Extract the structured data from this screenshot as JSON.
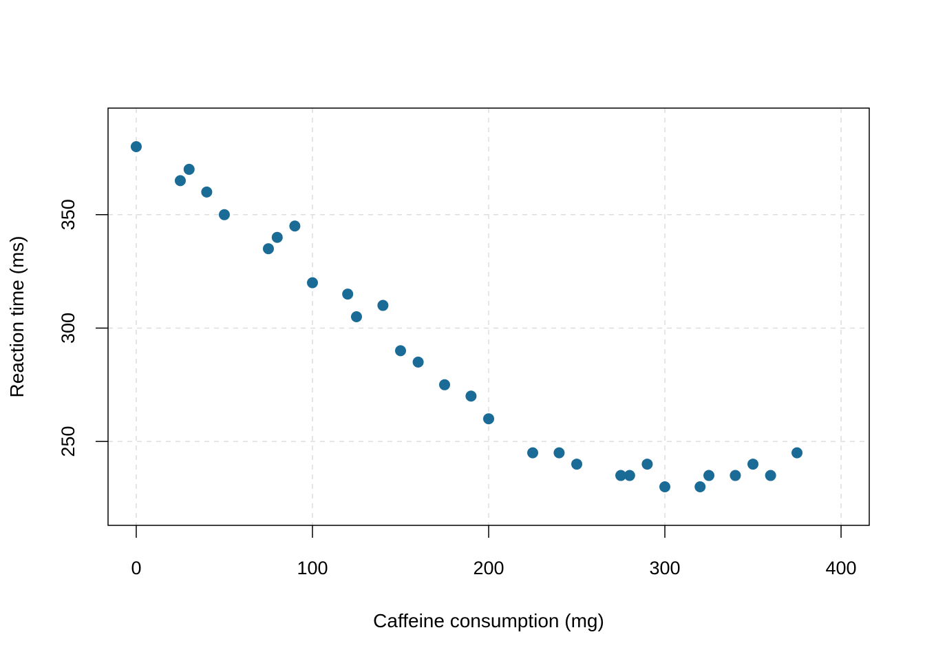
{
  "chart_data": {
    "type": "scatter",
    "title": "",
    "xlabel": "Caffeine consumption (mg)",
    "ylabel": "Reaction time (ms)",
    "xlim": [
      -16,
      416
    ],
    "ylim": [
      213,
      397
    ],
    "xticks": [
      0,
      100,
      200,
      300,
      400
    ],
    "yticks": [
      250,
      300,
      350
    ],
    "grid": true,
    "point_color": "#1a6b96",
    "grid_color": "#dddddd",
    "points": [
      {
        "x": 0,
        "y": 380
      },
      {
        "x": 25,
        "y": 365
      },
      {
        "x": 30,
        "y": 370
      },
      {
        "x": 40,
        "y": 360
      },
      {
        "x": 50,
        "y": 350
      },
      {
        "x": 75,
        "y": 335
      },
      {
        "x": 80,
        "y": 340
      },
      {
        "x": 90,
        "y": 345
      },
      {
        "x": 100,
        "y": 320
      },
      {
        "x": 120,
        "y": 315
      },
      {
        "x": 125,
        "y": 305
      },
      {
        "x": 140,
        "y": 310
      },
      {
        "x": 150,
        "y": 290
      },
      {
        "x": 160,
        "y": 285
      },
      {
        "x": 175,
        "y": 275
      },
      {
        "x": 190,
        "y": 270
      },
      {
        "x": 200,
        "y": 260
      },
      {
        "x": 225,
        "y": 245
      },
      {
        "x": 240,
        "y": 245
      },
      {
        "x": 250,
        "y": 240
      },
      {
        "x": 275,
        "y": 235
      },
      {
        "x": 280,
        "y": 235
      },
      {
        "x": 290,
        "y": 240
      },
      {
        "x": 300,
        "y": 230
      },
      {
        "x": 320,
        "y": 230
      },
      {
        "x": 325,
        "y": 235
      },
      {
        "x": 340,
        "y": 235
      },
      {
        "x": 350,
        "y": 240
      },
      {
        "x": 360,
        "y": 235
      },
      {
        "x": 375,
        "y": 245
      }
    ]
  }
}
